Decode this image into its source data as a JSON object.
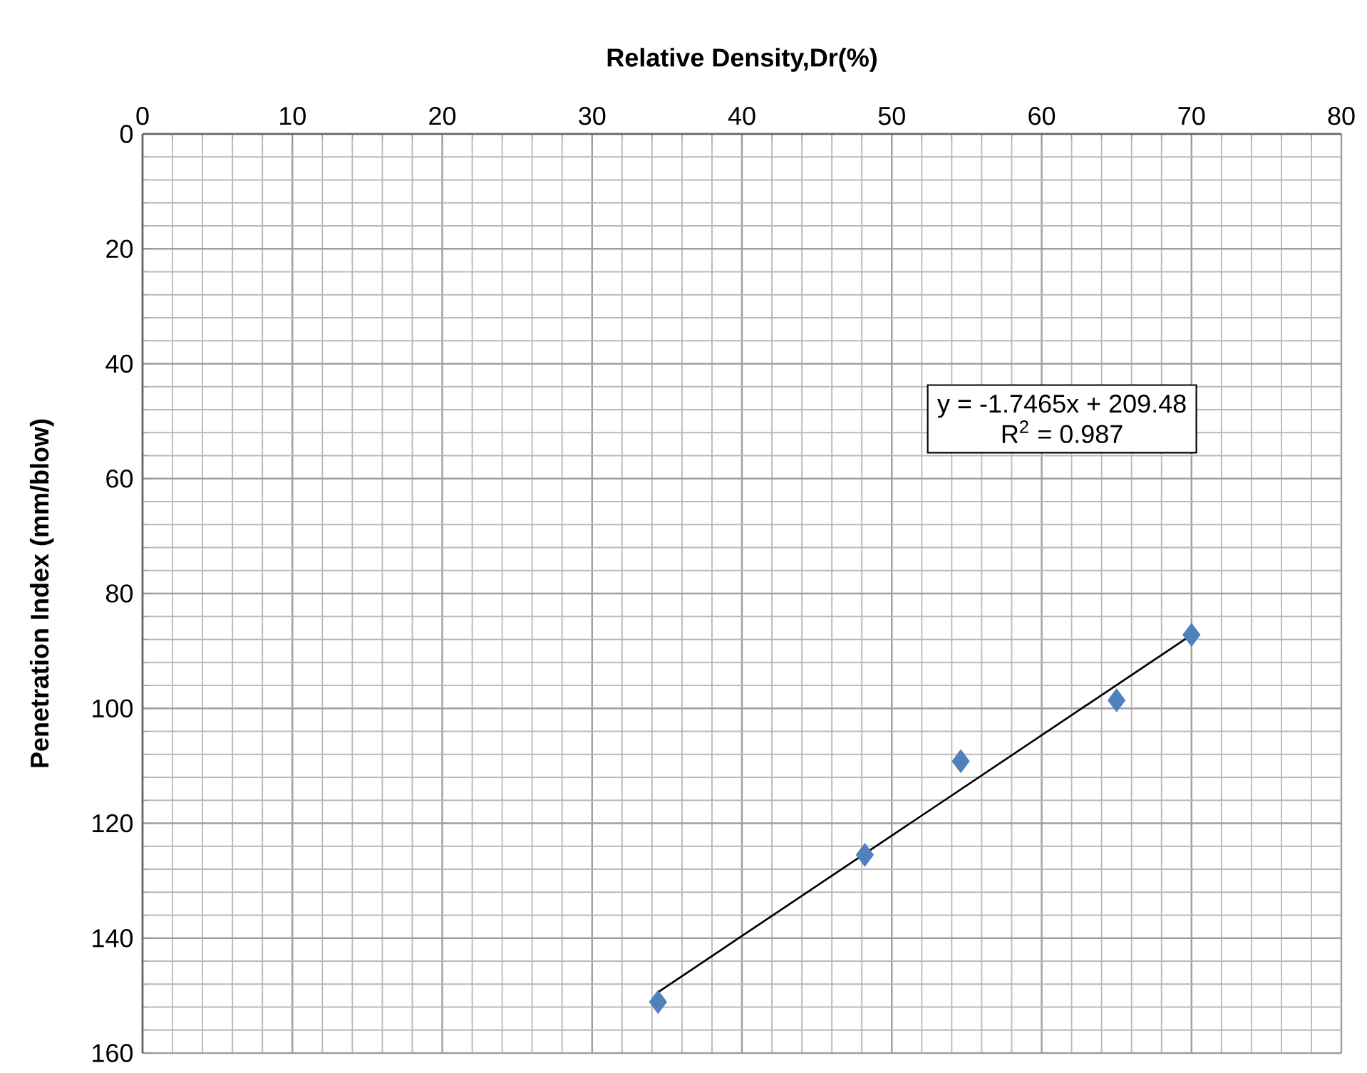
{
  "chart_data": {
    "type": "scatter",
    "xlabel": "Relative Density,Dr(%)",
    "ylabel": "Penetration Index (mm/blow)",
    "xlim": [
      0,
      80
    ],
    "xticks": [
      0,
      10,
      20,
      30,
      40,
      50,
      60,
      70,
      80
    ],
    "ylim": [
      160,
      0
    ],
    "yticks": [
      0,
      20,
      40,
      60,
      80,
      100,
      120,
      140,
      160
    ],
    "grid": true,
    "marker": "diamond",
    "annotations": [
      "y = -1.7465x + 209.48",
      "R$^{2}$ = 0.987"
    ],
    "series": [
      {
        "color": "#4f81bd",
        "x": [
          34.4,
          48.2,
          54.6,
          65,
          70
        ],
        "values": [
          151.1,
          125.5,
          109.2,
          98.6,
          87.2
        ]
      },
      {
        "type": "line",
        "color": "#000000",
        "line_style": "solid",
        "marker": "none",
        "x": [
          34.4,
          70
        ],
        "values": [
          149.4,
          87.2
        ]
      }
    ]
  }
}
